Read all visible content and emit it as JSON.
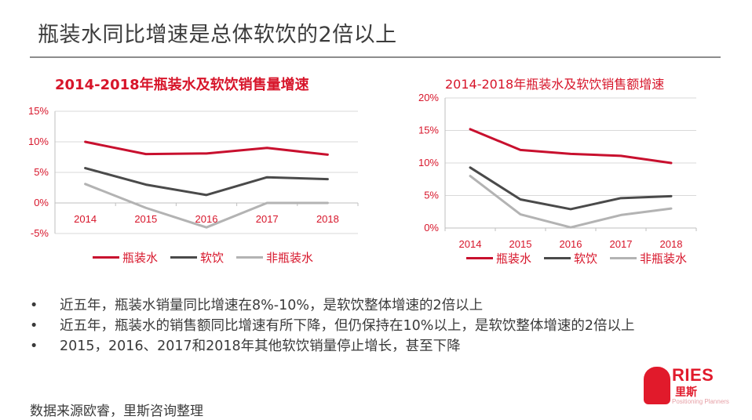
{
  "slide": {
    "title": "瓶装水同比增速是总体软饮的2倍以上",
    "bullets": [
      "近五年，瓶装水销量同比增速在8%-10%，是软饮整体增速的2倍以上",
      "近五年，瓶装水的销售额同比增速有所下降，但仍保持在10%以上，是软饮整体增速的2倍以上",
      "2015，2016、2017和2018年其他软饮销量停止增长，甚至下降"
    ],
    "bullet_mark": "•",
    "source": "数据来源欧睿，里斯咨询整理",
    "logo": {
      "word": "RIES",
      "sub": "里斯",
      "tag": "Positioning Planners"
    }
  },
  "colors": {
    "accent": "#d7152a",
    "bottled_water": "#c8102e",
    "soft_drinks": "#4a4a4a",
    "non_bottled": "#b3b3b3",
    "grid": "#d9d9d9",
    "rule": "#8c8c8c"
  },
  "chart_data": [
    {
      "type": "line",
      "title": "2014-2018年瓶装水及软饮销售量增速",
      "x": [
        "2014",
        "2015",
        "2016",
        "2017",
        "2018"
      ],
      "ylim": [
        -5,
        15
      ],
      "yticks": [
        -5,
        0,
        5,
        10,
        15
      ],
      "ytick_labels": [
        "-5%",
        "0%",
        "5%",
        "10%",
        "15%"
      ],
      "grid": true,
      "legend_position": "bottom",
      "series": [
        {
          "name": "瓶装水",
          "color": "#c8102e",
          "values": [
            10.0,
            8.0,
            8.1,
            9.0,
            7.9
          ]
        },
        {
          "name": "软饮",
          "color": "#4a4a4a",
          "values": [
            5.7,
            3.0,
            1.3,
            4.2,
            3.9
          ]
        },
        {
          "name": "非瓶装水",
          "color": "#b3b3b3",
          "values": [
            3.1,
            -0.8,
            -4.0,
            0.0,
            0.0
          ]
        }
      ]
    },
    {
      "type": "line",
      "title": "2014-2018年瓶装水及软饮销售额增速",
      "x": [
        "2014",
        "2015",
        "2016",
        "2017",
        "2018"
      ],
      "ylim": [
        0,
        20
      ],
      "yticks": [
        0,
        5,
        10,
        15,
        20
      ],
      "ytick_labels": [
        "0%",
        "5%",
        "10%",
        "15%",
        "20%"
      ],
      "grid": true,
      "legend_position": "bottom",
      "series": [
        {
          "name": "瓶装水",
          "color": "#c8102e",
          "values": [
            15.2,
            12.0,
            11.4,
            11.1,
            10.0
          ]
        },
        {
          "name": "软饮",
          "color": "#4a4a4a",
          "values": [
            9.3,
            4.4,
            2.9,
            4.6,
            4.9
          ]
        },
        {
          "name": "非瓶装水",
          "color": "#b3b3b3",
          "values": [
            8.0,
            2.1,
            0.1,
            2.0,
            3.0
          ]
        }
      ]
    }
  ]
}
